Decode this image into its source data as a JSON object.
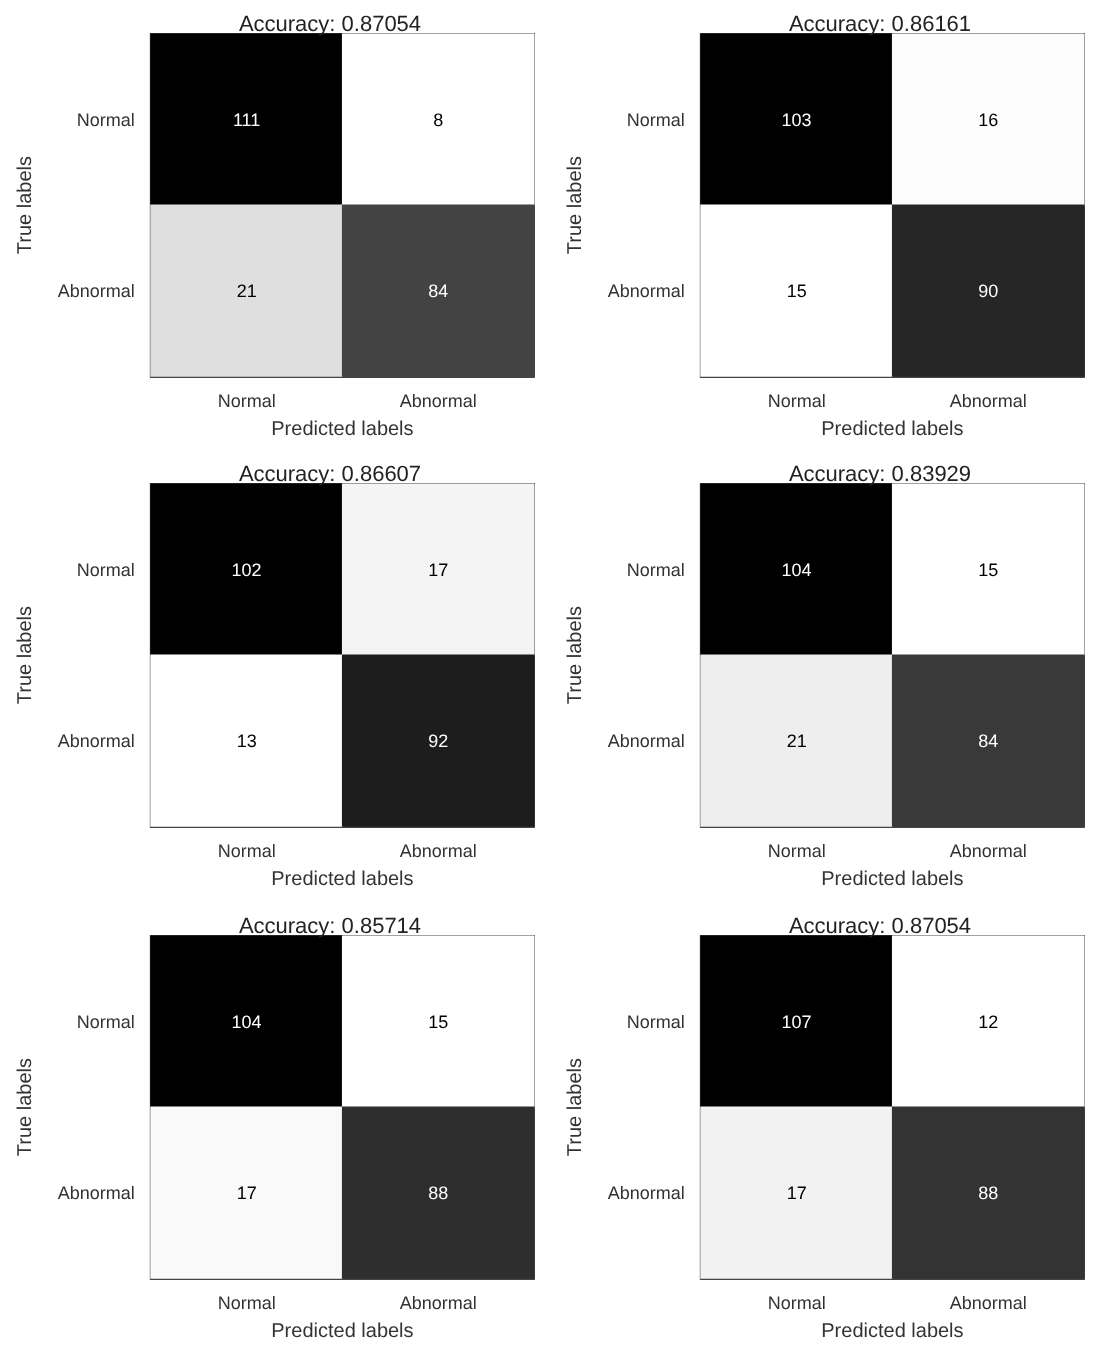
{
  "chart_data": [
    {
      "type": "heatmap",
      "title": "Accuracy: 0.87054",
      "xlabel": "Predicted labels",
      "ylabel": "True labels",
      "categories": [
        "Normal",
        "Abnormal"
      ],
      "y_categories": [
        "Normal",
        "Abnormal"
      ],
      "cells": [
        [
          111,
          8
        ],
        [
          21,
          84
        ]
      ],
      "data_labels": true
    },
    {
      "type": "heatmap",
      "title": "Accuracy: 0.86161",
      "xlabel": "Predicted labels",
      "ylabel": "True labels",
      "categories": [
        "Normal",
        "Abnormal"
      ],
      "y_categories": [
        "Normal",
        "Abnormal"
      ],
      "cells": [
        [
          103,
          16
        ],
        [
          15,
          90
        ]
      ],
      "data_labels": true
    },
    {
      "type": "heatmap",
      "title": "Accuracy: 0.86607",
      "xlabel": "Predicted labels",
      "ylabel": "True labels",
      "categories": [
        "Normal",
        "Abnormal"
      ],
      "y_categories": [
        "Normal",
        "Abnormal"
      ],
      "cells": [
        [
          102,
          17
        ],
        [
          13,
          92
        ]
      ],
      "data_labels": true
    },
    {
      "type": "heatmap",
      "title": "Accuracy: 0.83929",
      "xlabel": "Predicted labels",
      "ylabel": "True labels",
      "categories": [
        "Normal",
        "Abnormal"
      ],
      "y_categories": [
        "Normal",
        "Abnormal"
      ],
      "cells": [
        [
          104,
          15
        ],
        [
          21,
          84
        ]
      ],
      "data_labels": true
    },
    {
      "type": "heatmap",
      "title": "Accuracy: 0.85714",
      "xlabel": "Predicted labels",
      "ylabel": "True labels",
      "categories": [
        "Normal",
        "Abnormal"
      ],
      "y_categories": [
        "Normal",
        "Abnormal"
      ],
      "cells": [
        [
          104,
          15
        ],
        [
          17,
          88
        ]
      ],
      "data_labels": true
    },
    {
      "type": "heatmap",
      "title": "Accuracy: 0.87054",
      "xlabel": "Predicted labels",
      "ylabel": "True labels",
      "categories": [
        "Normal",
        "Abnormal"
      ],
      "y_categories": [
        "Normal",
        "Abnormal"
      ],
      "cells": [
        [
          107,
          12
        ],
        [
          17,
          88
        ]
      ],
      "data_labels": true
    }
  ]
}
